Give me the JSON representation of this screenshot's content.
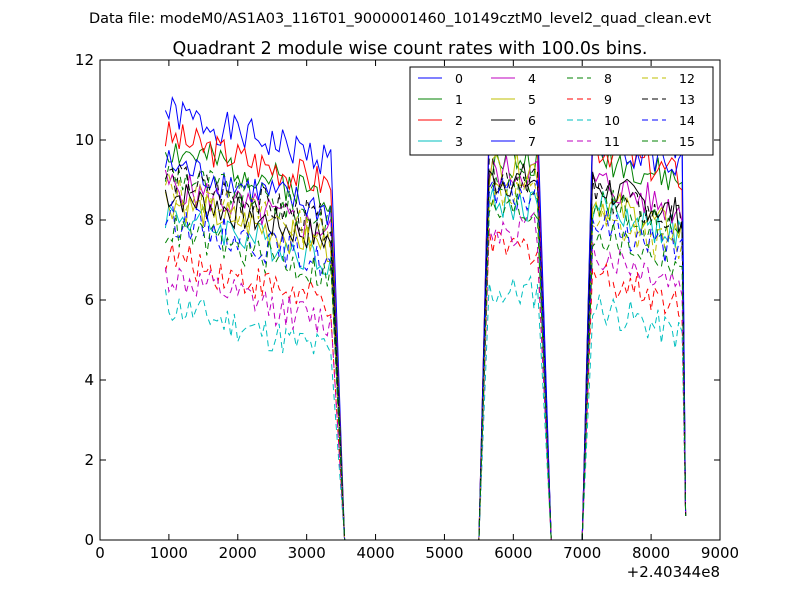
{
  "suptitle": "Data file: modeM0/AS1A03_116T01_9000001460_10149cztM0_level2_quad_clean.evt",
  "chart_data": {
    "type": "line",
    "title": "Quadrant 2 module wise count rates with 100.0s bins.",
    "xlabel": "",
    "ylabel": "",
    "xlim": [
      0,
      9000
    ],
    "ylim": [
      0,
      12
    ],
    "x_offset_label": "+2.40344e8",
    "xticks": [
      0,
      1000,
      2000,
      3000,
      4000,
      5000,
      6000,
      7000,
      8000,
      9000
    ],
    "xtick_labels": [
      "0",
      "1000",
      "2000",
      "3000",
      "4000",
      "5000",
      "6000",
      "7000",
      "8000",
      "9000"
    ],
    "yticks": [
      0,
      2,
      4,
      6,
      8,
      10,
      12
    ],
    "ytick_labels": [
      "0",
      "2",
      "4",
      "6",
      "8",
      "10",
      "12"
    ],
    "legend_position": "top-right",
    "legend_columns": 4,
    "segments": [
      {
        "start": 950,
        "end": 3350
      },
      {
        "start": 5650,
        "end": 6350
      },
      {
        "start": 7150,
        "end": 8450
      }
    ],
    "series": [
      {
        "name": "0",
        "color": "#0000ff",
        "style": "solid",
        "levels": [
          10.1,
          10.3,
          10.1
        ]
      },
      {
        "name": "1",
        "color": "#008000",
        "style": "solid",
        "levels": [
          9.2,
          9.5,
          9.3
        ]
      },
      {
        "name": "2",
        "color": "#ff0000",
        "style": "solid",
        "levels": [
          9.5,
          10.2,
          9.5
        ]
      },
      {
        "name": "3",
        "color": "#00bfbf",
        "style": "solid",
        "levels": [
          7.6,
          8.4,
          8.0
        ]
      },
      {
        "name": "4",
        "color": "#bf00bf",
        "style": "solid",
        "levels": [
          8.3,
          9.2,
          8.6
        ]
      },
      {
        "name": "5",
        "color": "#bfbf00",
        "style": "solid",
        "levels": [
          7.9,
          9.3,
          8.1
        ]
      },
      {
        "name": "6",
        "color": "#000000",
        "style": "solid",
        "levels": [
          8.1,
          9.0,
          8.5
        ]
      },
      {
        "name": "7",
        "color": "#0000ff",
        "style": "solid",
        "levels": [
          8.8,
          10.4,
          9.7
        ]
      },
      {
        "name": "8",
        "color": "#008000",
        "style": "dashed",
        "levels": [
          8.6,
          8.9,
          8.1
        ]
      },
      {
        "name": "9",
        "color": "#ff0000",
        "style": "dashed",
        "levels": [
          6.5,
          7.3,
          6.3
        ]
      },
      {
        "name": "10",
        "color": "#00bfbf",
        "style": "dashed",
        "levels": [
          5.3,
          6.2,
          5.5
        ]
      },
      {
        "name": "11",
        "color": "#bf00bf",
        "style": "dashed",
        "levels": [
          6.0,
          7.8,
          6.8
        ]
      },
      {
        "name": "12",
        "color": "#bfbf00",
        "style": "dashed",
        "levels": [
          8.2,
          8.7,
          7.6
        ]
      },
      {
        "name": "13",
        "color": "#000000",
        "style": "dashed",
        "levels": [
          8.5,
          9.1,
          8.3
        ]
      },
      {
        "name": "14",
        "color": "#0000ff",
        "style": "dashed",
        "levels": [
          7.5,
          8.6,
          7.6
        ]
      },
      {
        "name": "15",
        "color": "#008000",
        "style": "dashed",
        "levels": [
          7.2,
          8.2,
          7.3
        ]
      }
    ]
  }
}
